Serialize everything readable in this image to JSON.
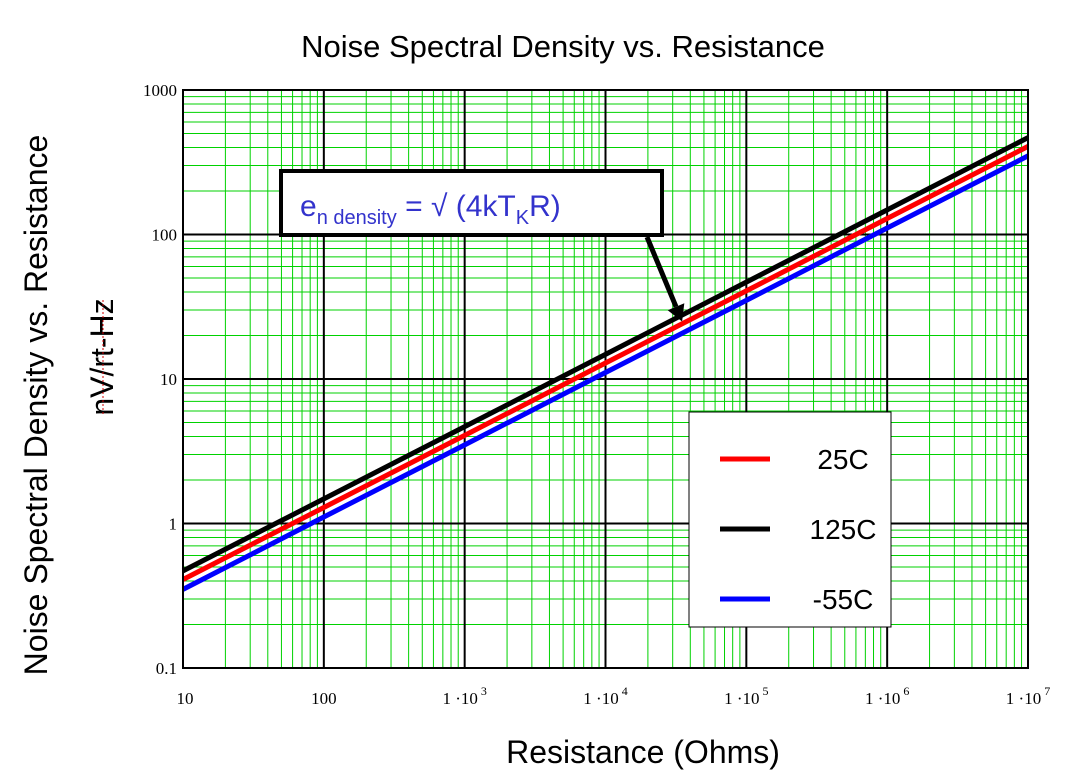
{
  "chart_data": {
    "type": "line",
    "title": "Noise Spectral Density vs. Resistance",
    "xlabel": "Resistance (Ohms)",
    "ylabel_line1": "Noise Spectral Density vs. Resistance",
    "ylabel_line2": "nV/rt-Hz",
    "xscale": "log",
    "yscale": "log",
    "xlim": [
      10,
      10000000
    ],
    "ylim": [
      0.1,
      1000
    ],
    "x_ticks": [
      {
        "value": 10,
        "base": "10",
        "exp": ""
      },
      {
        "value": 100,
        "base": "100",
        "exp": ""
      },
      {
        "value": 1000,
        "base": "1 ·10",
        "exp": "3"
      },
      {
        "value": 10000,
        "base": "1 ·10",
        "exp": "4"
      },
      {
        "value": 100000,
        "base": "1 ·10",
        "exp": "5"
      },
      {
        "value": 1000000,
        "base": "1 ·10",
        "exp": "6"
      },
      {
        "value": 10000000,
        "base": "1 ·10",
        "exp": "7"
      }
    ],
    "y_ticks": [
      {
        "value": 0.1,
        "label": "0.1"
      },
      {
        "value": 1,
        "label": "1"
      },
      {
        "value": 10,
        "label": "10"
      },
      {
        "value": 100,
        "label": "100"
      },
      {
        "value": 1000,
        "label": "1000"
      }
    ],
    "grid": true,
    "legend_position": "bottom-right",
    "series": [
      {
        "name": "25C",
        "color": "#ff0000",
        "x": [
          10,
          100,
          1000,
          10000,
          100000,
          1000000,
          10000000
        ],
        "y": [
          0.41,
          1.29,
          4.07,
          12.9,
          40.7,
          129,
          407
        ]
      },
      {
        "name": "125C",
        "color": "#000000",
        "x": [
          10,
          100,
          1000,
          10000,
          100000,
          1000000,
          10000000
        ],
        "y": [
          0.47,
          1.48,
          4.68,
          14.8,
          46.8,
          148,
          468
        ]
      },
      {
        "name": "-55C",
        "color": "#0000ff",
        "x": [
          10,
          100,
          1000,
          10000,
          100000,
          1000000,
          10000000
        ],
        "y": [
          0.35,
          1.11,
          3.5,
          11.1,
          35,
          111,
          350
        ]
      }
    ],
    "annotation": {
      "e": "e",
      "sub1": "n density",
      "mid": " = √ (4kT",
      "sub2": "K",
      "end": "R)",
      "arrow_target": {
        "x": 35000,
        "y": 25
      }
    }
  }
}
